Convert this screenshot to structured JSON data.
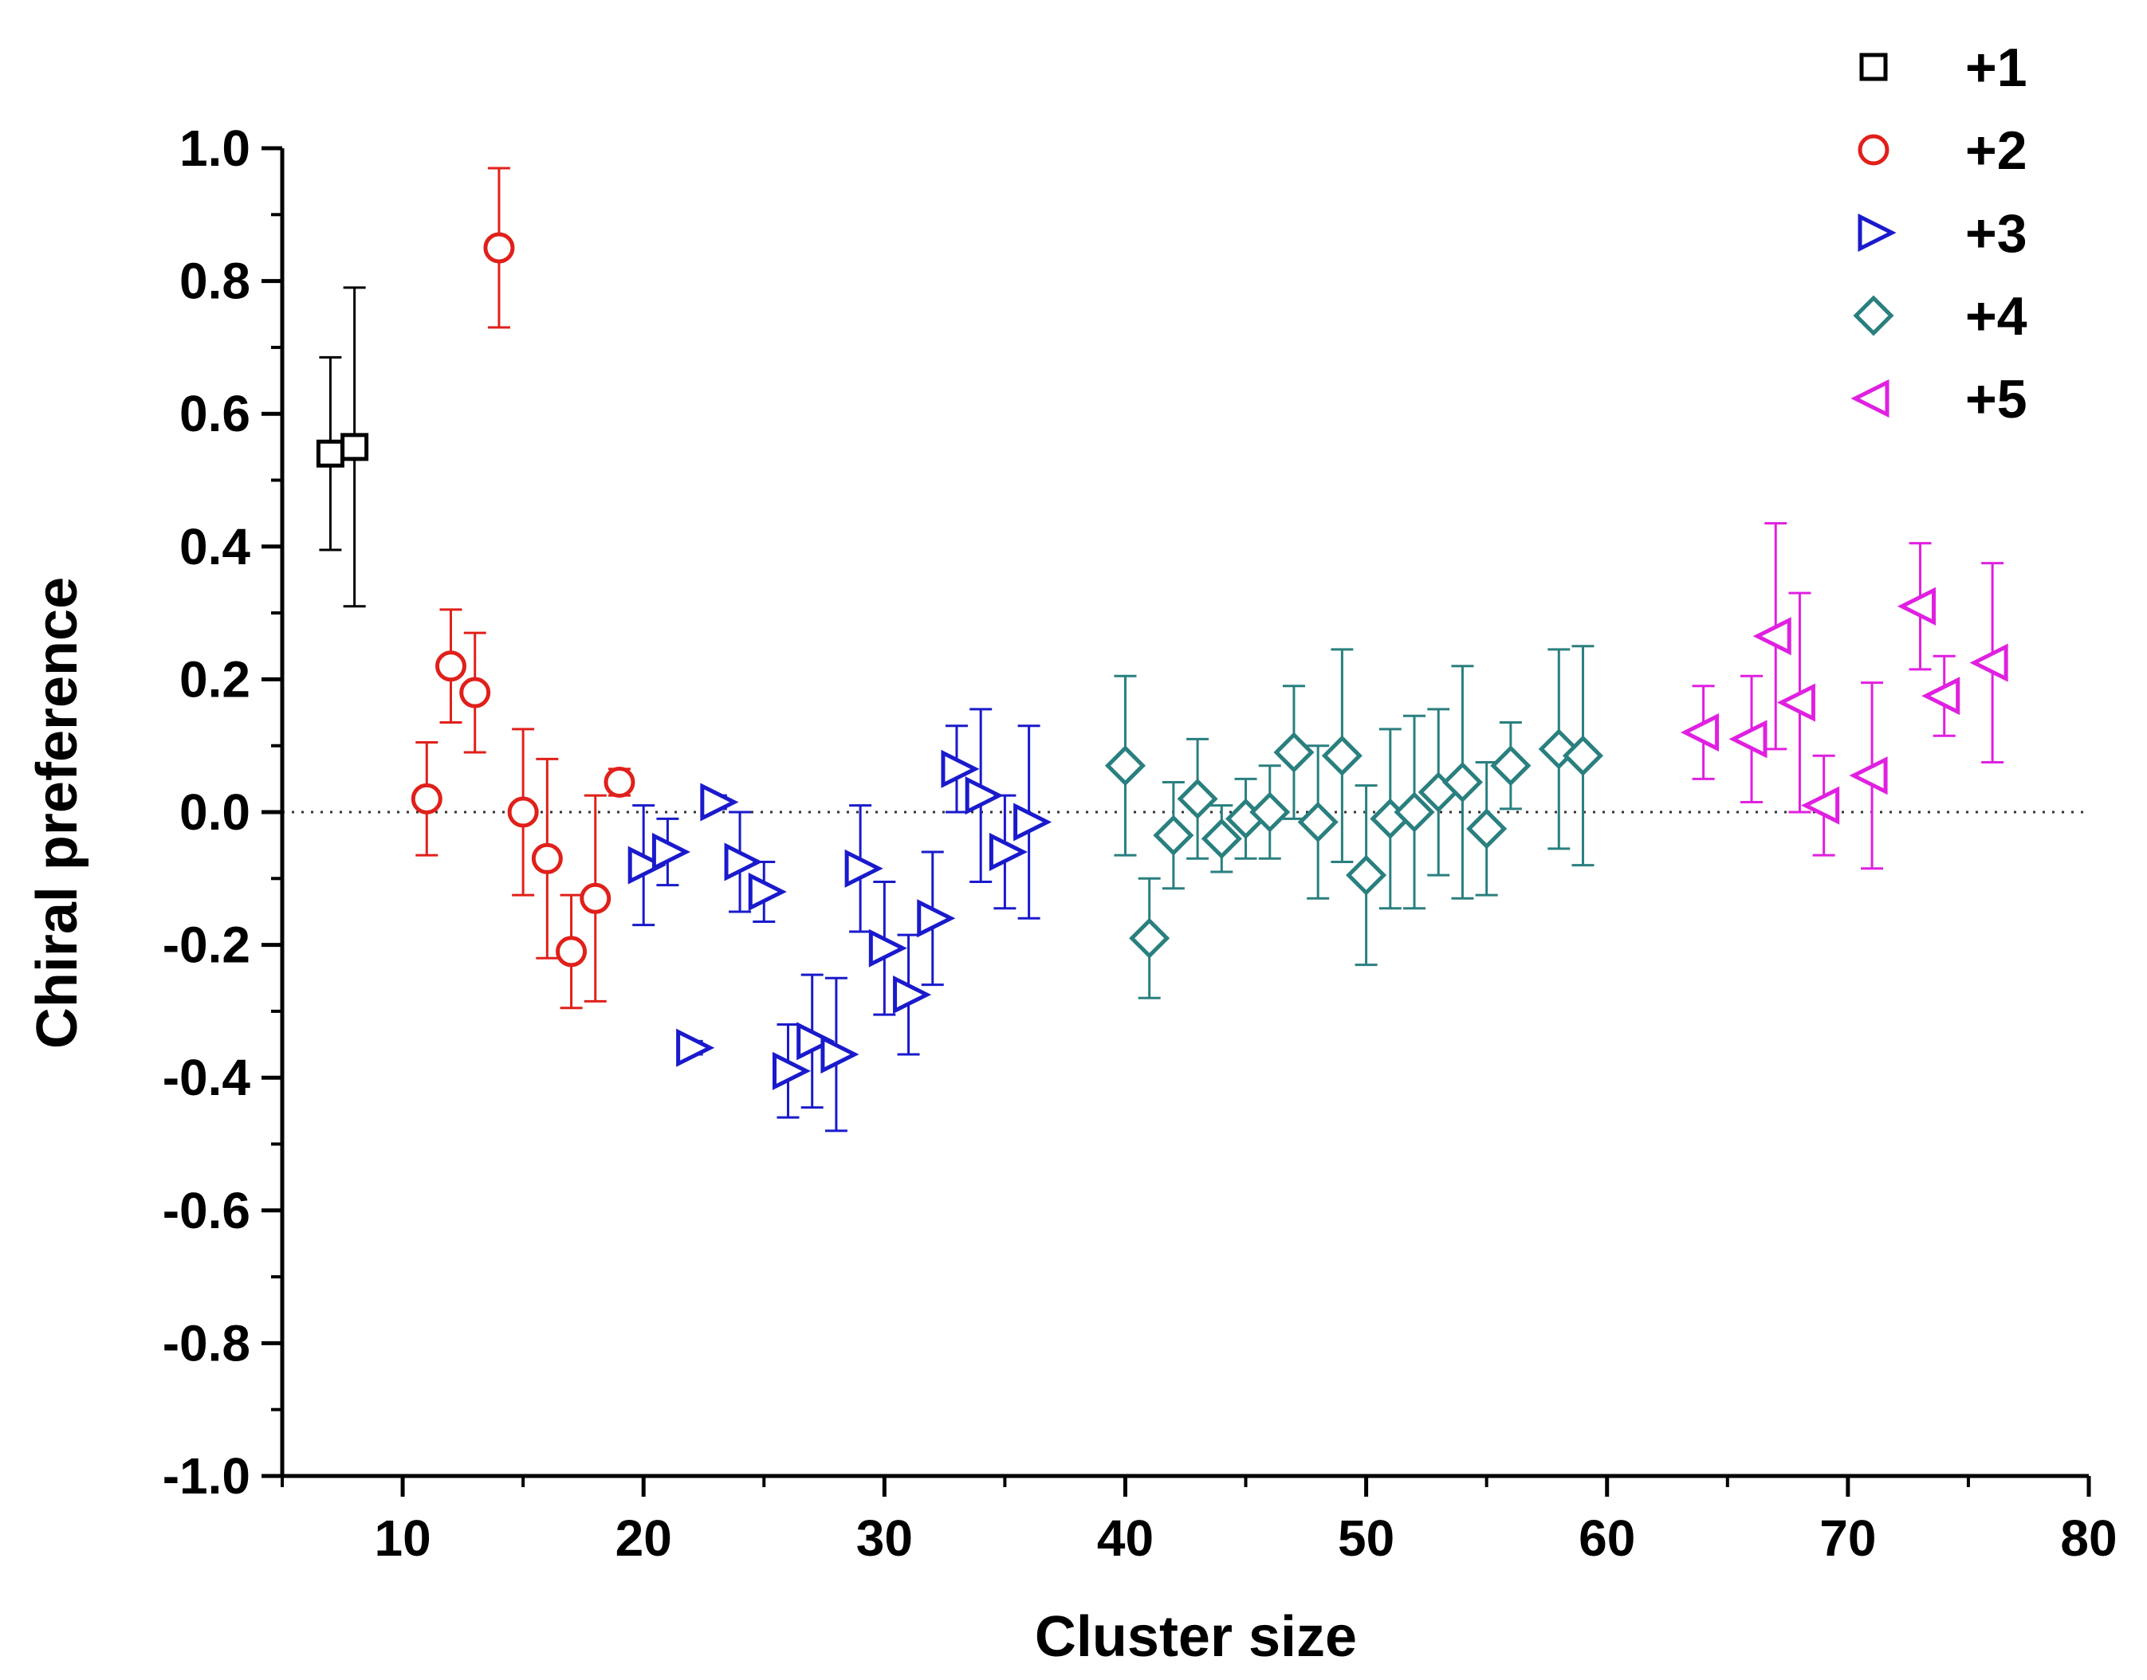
{
  "chart_data": {
    "type": "scatter",
    "title": "",
    "xlabel": "Cluster size",
    "ylabel": "Chiral preference",
    "xlim": [
      5,
      80
    ],
    "ylim": [
      -1.0,
      1.0
    ],
    "x_ticks": [
      10,
      20,
      30,
      40,
      50,
      60,
      70,
      80
    ],
    "x_tick_labels": [
      "10",
      "20",
      "30",
      "40",
      "50",
      "60",
      "70",
      "80"
    ],
    "y_ticks": [
      -1.0,
      -0.8,
      -0.6,
      -0.4,
      -0.2,
      0.0,
      0.2,
      0.4,
      0.6,
      0.8,
      1.0
    ],
    "y_tick_labels": [
      "-1.0",
      "-0.8",
      "-0.6",
      "-0.4",
      "-0.2",
      "0.0",
      "0.2",
      "0.4",
      "0.6",
      "0.8",
      "1.0"
    ],
    "reference_line": 0.0,
    "grid": false,
    "legend_position": "top-right",
    "series": [
      {
        "name": "+1",
        "marker": "square",
        "color": "#000000",
        "points": [
          {
            "x": 7,
            "y": 0.54,
            "err": 0.145
          },
          {
            "x": 8,
            "y": 0.55,
            "err": 0.24
          }
        ]
      },
      {
        "name": "+2",
        "marker": "circle",
        "color": "#e0201b",
        "points": [
          {
            "x": 11,
            "y": 0.02,
            "err": 0.085
          },
          {
            "x": 12,
            "y": 0.22,
            "err": 0.085
          },
          {
            "x": 13,
            "y": 0.18,
            "err": 0.09
          },
          {
            "x": 14,
            "y": 0.85,
            "err": 0.12
          },
          {
            "x": 15,
            "y": 0.0,
            "err": 0.125
          },
          {
            "x": 16,
            "y": -0.07,
            "err": 0.15
          },
          {
            "x": 17,
            "y": -0.21,
            "err": 0.085
          },
          {
            "x": 18,
            "y": -0.13,
            "err": 0.155
          },
          {
            "x": 19,
            "y": 0.045,
            "err": 0.02
          }
        ]
      },
      {
        "name": "+3",
        "marker": "triangle-right",
        "color": "#1a1acc",
        "points": [
          {
            "x": 20,
            "y": -0.08,
            "err": 0.09
          },
          {
            "x": 21,
            "y": -0.06,
            "err": 0.05
          },
          {
            "x": 22,
            "y": -0.355,
            "err": 0.01
          },
          {
            "x": 23,
            "y": 0.015,
            "err": 0.01
          },
          {
            "x": 24,
            "y": -0.075,
            "err": 0.075
          },
          {
            "x": 25,
            "y": -0.12,
            "err": 0.045
          },
          {
            "x": 26,
            "y": -0.39,
            "err": 0.07
          },
          {
            "x": 27,
            "y": -0.345,
            "err": 0.1
          },
          {
            "x": 28,
            "y": -0.365,
            "err": 0.115
          },
          {
            "x": 29,
            "y": -0.085,
            "err": 0.095
          },
          {
            "x": 30,
            "y": -0.205,
            "err": 0.1
          },
          {
            "x": 31,
            "y": -0.275,
            "err": 0.09
          },
          {
            "x": 32,
            "y": -0.16,
            "err": 0.1
          },
          {
            "x": 33,
            "y": 0.065,
            "err": 0.065
          },
          {
            "x": 34,
            "y": 0.025,
            "err": 0.13
          },
          {
            "x": 35,
            "y": -0.06,
            "err": 0.085
          },
          {
            "x": 36,
            "y": -0.015,
            "err": 0.145
          }
        ]
      },
      {
        "name": "+4",
        "marker": "diamond",
        "color": "#2a7f7f",
        "points": [
          {
            "x": 40,
            "y": 0.07,
            "err": 0.135
          },
          {
            "x": 41,
            "y": -0.19,
            "err": 0.09
          },
          {
            "x": 42,
            "y": -0.035,
            "err": 0.08
          },
          {
            "x": 43,
            "y": 0.02,
            "err": 0.09
          },
          {
            "x": 44,
            "y": -0.04,
            "err": 0.05
          },
          {
            "x": 45,
            "y": -0.01,
            "err": 0.06
          },
          {
            "x": 46,
            "y": 0.0,
            "err": 0.07
          },
          {
            "x": 47,
            "y": 0.09,
            "err": 0.1
          },
          {
            "x": 48,
            "y": -0.015,
            "err": 0.115
          },
          {
            "x": 49,
            "y": 0.085,
            "err": 0.16
          },
          {
            "x": 50,
            "y": -0.095,
            "err": 0.135
          },
          {
            "x": 51,
            "y": -0.01,
            "err": 0.135
          },
          {
            "x": 52,
            "y": 0.0,
            "err": 0.145
          },
          {
            "x": 53,
            "y": 0.03,
            "err": 0.125
          },
          {
            "x": 54,
            "y": 0.045,
            "err": 0.175
          },
          {
            "x": 55,
            "y": -0.025,
            "err": 0.1
          },
          {
            "x": 56,
            "y": 0.07,
            "err": 0.065
          },
          {
            "x": 58,
            "y": 0.095,
            "err": 0.15
          },
          {
            "x": 59,
            "y": 0.085,
            "err": 0.165
          }
        ]
      },
      {
        "name": "+5",
        "marker": "triangle-left",
        "color": "#e020e0",
        "points": [
          {
            "x": 64,
            "y": 0.12,
            "err": 0.07
          },
          {
            "x": 66,
            "y": 0.11,
            "err": 0.095
          },
          {
            "x": 67,
            "y": 0.265,
            "err": 0.17
          },
          {
            "x": 68,
            "y": 0.165,
            "err": 0.165
          },
          {
            "x": 69,
            "y": 0.01,
            "err": 0.075
          },
          {
            "x": 71,
            "y": 0.055,
            "err": 0.14
          },
          {
            "x": 73,
            "y": 0.31,
            "err": 0.095
          },
          {
            "x": 74,
            "y": 0.175,
            "err": 0.06
          },
          {
            "x": 76,
            "y": 0.225,
            "err": 0.15
          }
        ]
      }
    ]
  }
}
